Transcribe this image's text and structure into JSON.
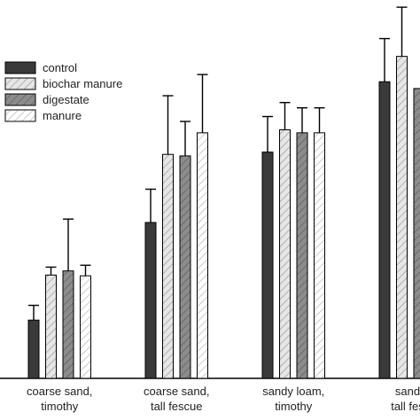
{
  "chart_data": {
    "type": "bar",
    "title": "",
    "xlabel": "",
    "ylabel": "",
    "ylim": [
      0,
      100
    ],
    "grid": false,
    "legend_position": "top-left",
    "categories": [
      [
        "coarse sand,",
        "timothy"
      ],
      [
        "coarse sand,",
        "tall fescue"
      ],
      [
        "sandy loam,",
        "timothy"
      ],
      [
        "sandy",
        "tall fesc"
      ]
    ],
    "series": [
      {
        "name": "control",
        "fill": "#3a3a3a",
        "hatch": false,
        "values": [
          15.4,
          41.2,
          59.8,
          78.4
        ],
        "errors": [
          3.9,
          8.8,
          9.4,
          11.4
        ]
      },
      {
        "name": "biochar manure",
        "fill": "#e8e8e8",
        "hatch": true,
        "values": [
          27.3,
          59.2,
          65.7,
          85.1
        ],
        "errors": [
          2.1,
          15.5,
          7.2,
          13.0
        ]
      },
      {
        "name": "digestate",
        "fill": "#8a8a8a",
        "hatch": true,
        "values": [
          28.4,
          58.8,
          64.9,
          76.6
        ],
        "errors": [
          13.7,
          9.1,
          6.6,
          0
        ]
      },
      {
        "name": "manure",
        "fill": "#ffffff",
        "hatch": true,
        "values": [
          27.1,
          64.9,
          64.9,
          0
        ],
        "errors": [
          2.8,
          15.4,
          6.6,
          0
        ]
      }
    ]
  }
}
